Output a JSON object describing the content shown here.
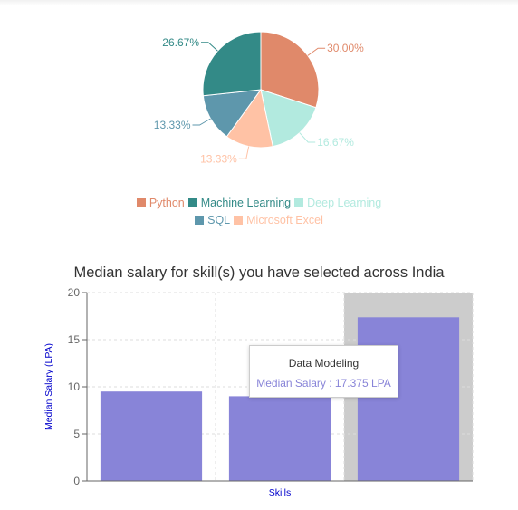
{
  "chart_data": [
    {
      "type": "pie",
      "title": "",
      "slices": [
        {
          "name": "Python",
          "value": 30.0,
          "label": "30.00%",
          "color": "#E0896A"
        },
        {
          "name": "Deep Learning",
          "value": 16.67,
          "label": "16.67%",
          "color": "#B2EADF"
        },
        {
          "name": "Microsoft Excel",
          "value": 13.33,
          "label": "13.33%",
          "color": "#FFC2A5"
        },
        {
          "name": "SQL",
          "value": 13.33,
          "label": "13.33%",
          "color": "#5E97AC"
        },
        {
          "name": "Machine Learning",
          "value": 26.67,
          "label": "26.67%",
          "color": "#338A87"
        }
      ],
      "legend": {
        "placement": "bottom",
        "rows": [
          [
            "Python",
            "Machine Learning",
            "Deep Learning"
          ],
          [
            "SQL",
            "Microsoft Excel"
          ]
        ]
      }
    },
    {
      "type": "bar",
      "title": "Median salary for skill(s) you have selected across India",
      "xlabel": "Skills",
      "ylabel": "Median Salary (LPA)",
      "ylim": [
        0,
        20
      ],
      "yticks": [
        "0",
        "5",
        "10",
        "15",
        "20"
      ],
      "grid": true,
      "categories": [
        "",
        "",
        "Data Modeling"
      ],
      "values": [
        9.5,
        9.0,
        17.375
      ],
      "bar_color": "#8884D8",
      "active_index": 2,
      "highlight_color": "#CCCCCC",
      "tooltip": {
        "title": "Data Modeling",
        "value_label": "Median Salary : 17.375 LPA",
        "color": "#8884D8"
      }
    }
  ]
}
